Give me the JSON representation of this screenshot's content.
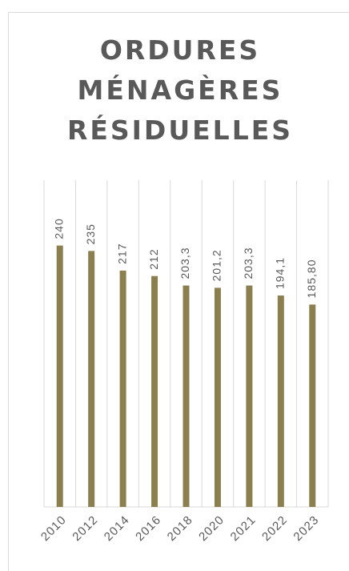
{
  "chart_data": {
    "type": "bar",
    "title": "ORDURES MÉNAGÈRES RÉSIDUELLES",
    "categories": [
      "2010",
      "2012",
      "2014",
      "2016",
      "2018",
      "2020",
      "2021",
      "2022",
      "2023"
    ],
    "values": [
      240,
      235,
      217,
      212,
      203.3,
      201.2,
      203.3,
      194.1,
      185.8
    ],
    "value_labels": [
      "240",
      "235",
      "217",
      "212",
      "203,3",
      "201,2",
      "203,3",
      "194,1",
      "185,80"
    ],
    "color": "#8b7f4f",
    "ylim": [
      0,
      300
    ],
    "grid": true
  }
}
